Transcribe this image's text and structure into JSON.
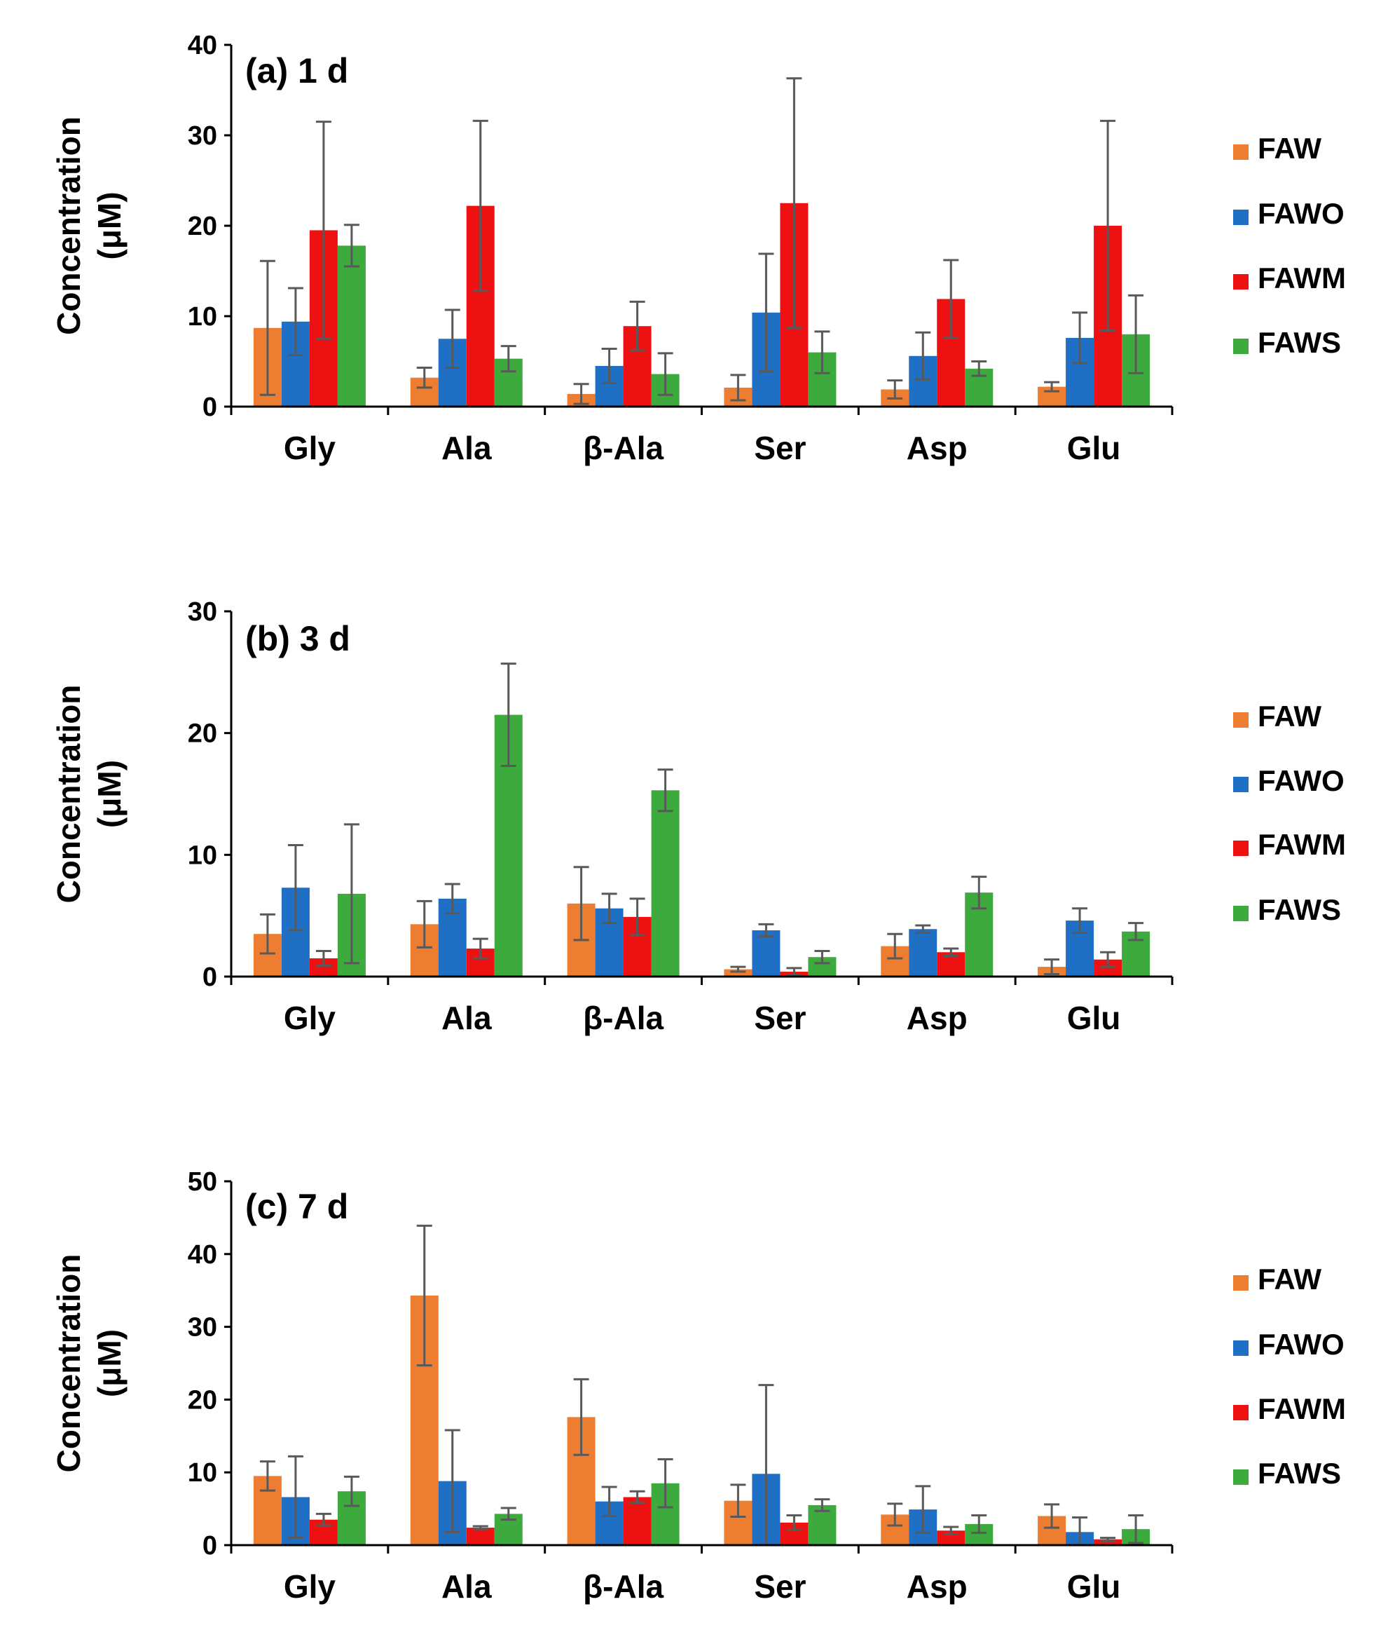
{
  "colors": {
    "FAW": "#ED7D31",
    "FAWO": "#1F6FC5",
    "FAWM": "#EE1111",
    "FAWS": "#3CAA3C"
  },
  "chart_data": [
    {
      "type": "bar",
      "title": "(a) 1 d",
      "ylabel": "Concentration (μM)",
      "ylabel_lines": [
        "Concentration",
        "(μM)"
      ],
      "ylim": [
        0,
        40
      ],
      "yticks": [
        0,
        10,
        20,
        30,
        40
      ],
      "categories": [
        "Gly",
        "Ala",
        "β-Ala",
        "Ser",
        "Asp",
        "Glu"
      ],
      "series": [
        {
          "name": "FAW",
          "values": [
            8.7,
            3.2,
            1.4,
            2.1,
            1.9,
            2.2
          ],
          "errors": [
            7.4,
            1.1,
            1.1,
            1.4,
            1.0,
            0.5
          ]
        },
        {
          "name": "FAWO",
          "values": [
            9.4,
            7.5,
            4.5,
            10.4,
            5.6,
            7.6
          ],
          "errors": [
            3.7,
            3.2,
            1.9,
            6.5,
            2.6,
            2.8
          ]
        },
        {
          "name": "FAWM",
          "values": [
            19.5,
            22.2,
            8.9,
            22.5,
            11.9,
            20.0
          ],
          "errors": [
            12.0,
            9.4,
            2.7,
            13.8,
            4.3,
            11.6
          ]
        },
        {
          "name": "FAWS",
          "values": [
            17.8,
            5.3,
            3.6,
            6.0,
            4.2,
            8.0
          ],
          "errors": [
            2.3,
            1.4,
            2.3,
            2.3,
            0.8,
            4.3
          ]
        }
      ]
    },
    {
      "type": "bar",
      "title": "(b) 3 d",
      "ylabel": "Concentration (μM)",
      "ylabel_lines": [
        "Concentration",
        "(μM)"
      ],
      "ylim": [
        0,
        30
      ],
      "yticks": [
        0,
        10,
        20,
        30
      ],
      "categories": [
        "Gly",
        "Ala",
        "β-Ala",
        "Ser",
        "Asp",
        "Glu"
      ],
      "series": [
        {
          "name": "FAW",
          "values": [
            3.5,
            4.3,
            6.0,
            0.6,
            2.5,
            0.8
          ],
          "errors": [
            1.6,
            1.9,
            3.0,
            0.2,
            1.0,
            0.6
          ]
        },
        {
          "name": "FAWO",
          "values": [
            7.3,
            6.4,
            5.6,
            3.8,
            3.9,
            4.6
          ],
          "errors": [
            3.5,
            1.2,
            1.2,
            0.5,
            0.3,
            1.0
          ]
        },
        {
          "name": "FAWM",
          "values": [
            1.5,
            2.3,
            4.9,
            0.4,
            2.0,
            1.4
          ],
          "errors": [
            0.6,
            0.8,
            1.5,
            0.3,
            0.3,
            0.6
          ]
        },
        {
          "name": "FAWS",
          "values": [
            6.8,
            21.5,
            15.3,
            1.6,
            6.9,
            3.7
          ],
          "errors": [
            5.7,
            4.2,
            1.7,
            0.5,
            1.3,
            0.7
          ]
        }
      ]
    },
    {
      "type": "bar",
      "title": "(c) 7 d",
      "ylabel": "Concentration (μM)",
      "ylabel_lines": [
        "Concentration",
        "(μM)"
      ],
      "ylim": [
        0,
        50
      ],
      "yticks": [
        0,
        10,
        20,
        30,
        40,
        50
      ],
      "categories": [
        "Gly",
        "Ala",
        "β-Ala",
        "Ser",
        "Asp",
        "Glu"
      ],
      "series": [
        {
          "name": "FAW",
          "values": [
            9.5,
            34.3,
            17.6,
            6.1,
            4.2,
            4.0
          ],
          "errors": [
            2.0,
            9.6,
            5.2,
            2.2,
            1.5,
            1.6
          ]
        },
        {
          "name": "FAWO",
          "values": [
            6.6,
            8.8,
            6.0,
            9.8,
            4.9,
            1.8
          ],
          "errors": [
            5.6,
            7.0,
            2.0,
            12.2,
            3.2,
            2.0
          ]
        },
        {
          "name": "FAWM",
          "values": [
            3.5,
            2.4,
            6.6,
            3.1,
            2.0,
            0.8
          ],
          "errors": [
            0.8,
            0.2,
            0.8,
            1.0,
            0.5,
            0.2
          ]
        },
        {
          "name": "FAWS",
          "values": [
            7.4,
            4.3,
            8.5,
            5.5,
            2.9,
            2.2
          ],
          "errors": [
            2.0,
            0.8,
            3.3,
            0.8,
            1.2,
            1.9
          ]
        }
      ]
    }
  ]
}
